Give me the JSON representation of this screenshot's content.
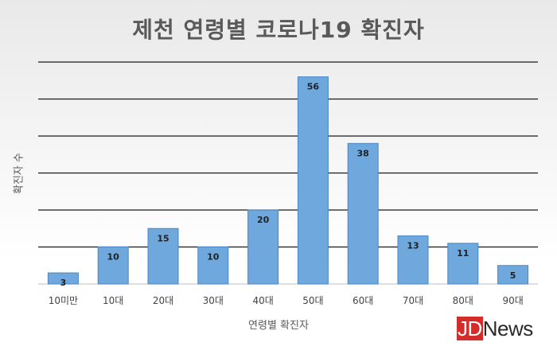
{
  "chart_data": {
    "type": "bar",
    "title": "제천 연령별 코로나19 확진자",
    "xlabel": "연령별 확진자",
    "ylabel": "확진자 수",
    "categories": [
      "10미만",
      "10대",
      "20대",
      "30대",
      "40대",
      "50대",
      "60대",
      "70대",
      "80대",
      "90대"
    ],
    "values": [
      3,
      10,
      15,
      10,
      20,
      56,
      38,
      13,
      11,
      5
    ],
    "ylim": [
      0,
      60
    ],
    "grid": true,
    "bar_color": "#6fa8dc",
    "bar_border_color": "#4a86c5",
    "data_labels": true
  },
  "watermark": {
    "part1": "JD",
    "part2": "News"
  }
}
